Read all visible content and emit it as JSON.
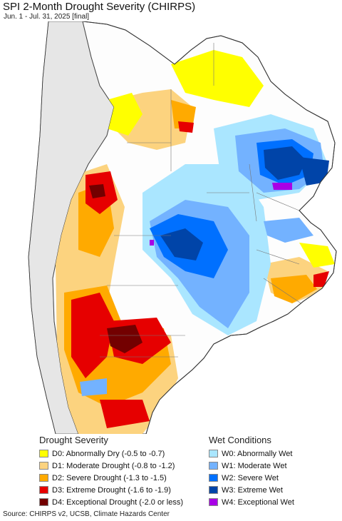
{
  "header": {
    "title": "SPI 2-Month Drought Severity (CHIRPS)",
    "subtitle": "Jun. 1 - Jul. 31, 2025 [final]"
  },
  "legend": {
    "drought": {
      "title": "Drought Severity",
      "items": [
        {
          "label": "D0: Abnormally Dry (-0.5 to -0.7)",
          "color": "#ffff00"
        },
        {
          "label": "D1: Moderate Drought (-0.8 to -1.2)",
          "color": "#fcd37f"
        },
        {
          "label": "D2: Severe Drought (-1.3 to -1.5)",
          "color": "#ffaa00"
        },
        {
          "label": "D3: Extreme Drought (-1.6 to -1.9)",
          "color": "#e60000"
        },
        {
          "label": "D4: Exceptional Drought (-2.0 or less)",
          "color": "#730000"
        }
      ]
    },
    "wet": {
      "title": "Wet Conditions",
      "items": [
        {
          "label": "W0: Abnormally Wet",
          "color": "#aae6ff"
        },
        {
          "label": "W1: Moderate Wet",
          "color": "#73b2ff"
        },
        {
          "label": "W2: Severe Wet",
          "color": "#0070ff"
        },
        {
          "label": "W3: Extreme Wet",
          "color": "#0044a8"
        },
        {
          "label": "W4: Exceptional Wet",
          "color": "#a800e6"
        }
      ]
    }
  },
  "source": "Source: CHIRPS v2, UCSB, Climate Hazards Center"
}
